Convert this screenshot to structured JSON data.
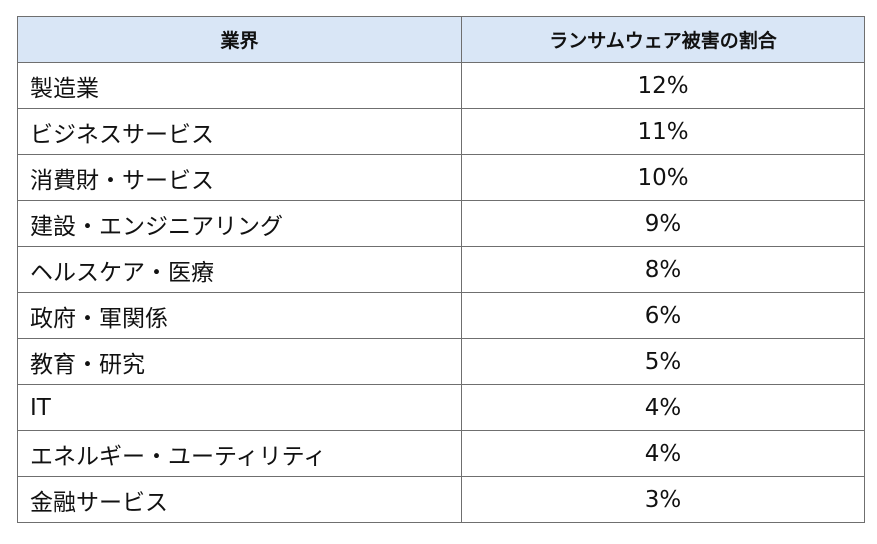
{
  "table": {
    "headers": [
      "業界",
      "ランサムウェア被害の割合"
    ],
    "rows": [
      [
        "製造業",
        "12%"
      ],
      [
        "ビジネスサービス",
        "11%"
      ],
      [
        "消費財・サービス",
        "10%"
      ],
      [
        "建設・エンジニアリング",
        "9%"
      ],
      [
        "ヘルスケア・医療",
        "8%"
      ],
      [
        "政府・軍関係",
        "6%"
      ],
      [
        "教育・研究",
        "5%"
      ],
      [
        "IT",
        "4%"
      ],
      [
        "エネルギー・ユーティリティ",
        "4%"
      ],
      [
        "金融サービス",
        "3%"
      ]
    ]
  },
  "colors": {
    "header_background": "#d9e6f6",
    "border": "#6f6f6f",
    "text": "#111111"
  }
}
